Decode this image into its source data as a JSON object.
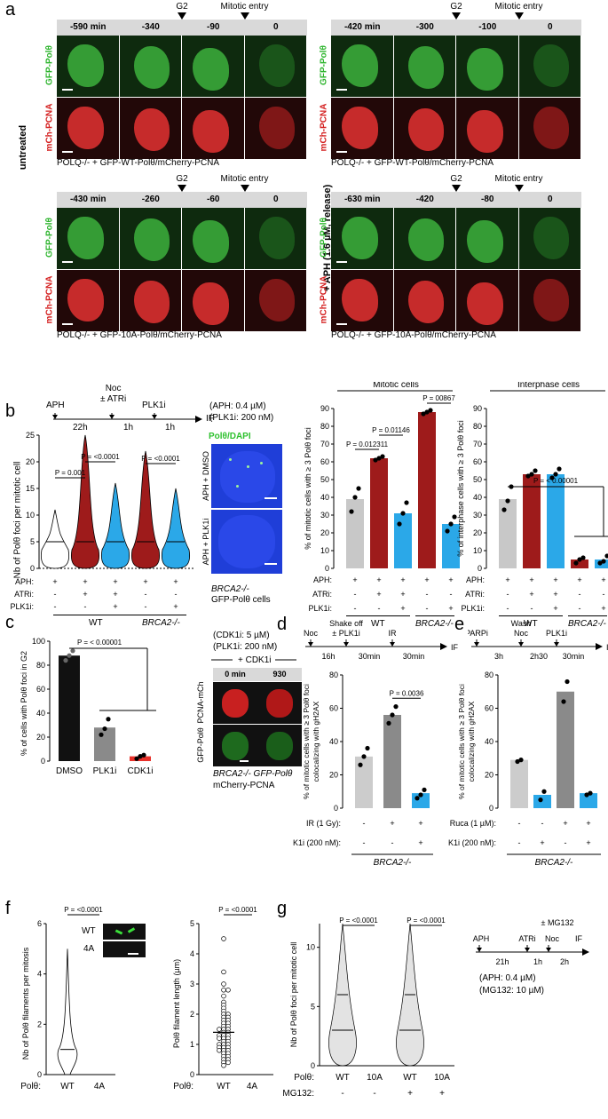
{
  "panel_a": {
    "label": "a",
    "side_untreated": "untreated",
    "side_aph": "+ APH (1.6  µM, release)",
    "g2": "G2",
    "mitotic_entry": "Mitotic entry",
    "row_green": "GFP-Polθ",
    "row_red": "mCh-PCNA",
    "sub1": {
      "times": [
        "-590 min",
        "-340",
        "-90",
        "0"
      ],
      "caption": "POLQ-/- + GFP-WT-Polθ/mCherry-PCNA"
    },
    "sub2": {
      "times": [
        "-420 min",
        "-300",
        "-100",
        "0"
      ],
      "caption": "POLQ-/- + GFP-WT-Polθ/mCherry-PCNA"
    },
    "sub3": {
      "times": [
        "-430 min",
        "-260",
        "-60",
        "0"
      ],
      "caption": "POLQ-/- + GFP-10A-Polθ/mCherry-PCNA"
    },
    "sub4": {
      "times": [
        "-630 min",
        "-420",
        "-80",
        "0"
      ],
      "caption": "POLQ-/- + GFP-10A-Polθ/mCherry-PCNA"
    }
  },
  "panel_b": {
    "label": "b",
    "timeline": {
      "steps": [
        "APH",
        "Noc\n± ATRi",
        "PLK1i",
        "IF"
      ],
      "durations": [
        "22h",
        "1h",
        "1h"
      ]
    },
    "conc": [
      "(APH: 0.4 µM)",
      "(PLK1i: 200 nM)"
    ],
    "img_title": "Polθ/DAPI",
    "img_rows": [
      "APH + DMSO",
      "APH + PLK1i"
    ],
    "img_caption": [
      "BRCA2-/-",
      "GFP-Polθ cells"
    ],
    "violin": {
      "ylabel": "Nb of Polθ foci per mitotic cell",
      "yticks": [
        "25",
        "20",
        "15",
        "10",
        "5",
        "0"
      ],
      "pvals": [
        "P = 0.001",
        "P = <0.0001",
        "P = <0.0001"
      ]
    },
    "mitotic": {
      "title": "Mitotic cells",
      "ylabel": "% of mitotic cells with ≥ 3 Polθ foci",
      "yticks": [
        "90",
        "80",
        "70",
        "60",
        "50",
        "40",
        "30",
        "20",
        "10",
        "0"
      ],
      "pvals": [
        "P = 0.012311",
        "P = 0.01146",
        "P = 00867"
      ]
    },
    "interphase": {
      "title": "Interphase cells",
      "ylabel": "% of interphase cells with ≥ 3 Polθ foci",
      "yticks": [
        "90",
        "80",
        "70",
        "60",
        "50",
        "40",
        "30",
        "20",
        "10",
        "0"
      ],
      "pvals": [
        "P = < 0.00001"
      ]
    },
    "cond_labels": [
      "APH:",
      "ATRi:",
      "PLK1i:"
    ],
    "cond_aph": [
      "+",
      "+",
      "+",
      "+",
      "+"
    ],
    "cond_atri": [
      "-",
      "+",
      "+",
      "-",
      "-"
    ],
    "cond_plk": [
      "-",
      "-",
      "+",
      "-",
      "+"
    ],
    "group_wt": "WT",
    "group_brca": "BRCA2-/-"
  },
  "chart_data": [
    {
      "type": "bar",
      "title": "Mitotic cells",
      "ylabel": "% of mitotic cells with ≥ 3 Polθ foci",
      "ylim": [
        0,
        90
      ],
      "categories": [
        "WT APH",
        "WT APH+ATRi",
        "WT APH+ATRi+PLK1i",
        "BRCA2-/- APH",
        "BRCA2-/- APH+PLK1i"
      ],
      "values": [
        39,
        62,
        31,
        88,
        25
      ],
      "colors": [
        "#c8c8c8",
        "#9e1b1b",
        "#2ba8e8",
        "#9e1b1b",
        "#2ba8e8"
      ],
      "points": [
        [
          32,
          40,
          45
        ],
        [
          61,
          62,
          63
        ],
        [
          25,
          31,
          37
        ],
        [
          87,
          88,
          89
        ],
        [
          21,
          25,
          29
        ]
      ]
    },
    {
      "type": "bar",
      "title": "Interphase cells",
      "ylabel": "% of interphase cells with ≥ 3 Polθ foci",
      "ylim": [
        0,
        90
      ],
      "categories": [
        "WT APH",
        "WT APH+ATRi",
        "WT APH+ATRi+PLK1i",
        "BRCA2-/- APH",
        "BRCA2-/- APH+PLK1i"
      ],
      "values": [
        39,
        53,
        53,
        5,
        5
      ],
      "colors": [
        "#c8c8c8",
        "#9e1b1b",
        "#2ba8e8",
        "#9e1b1b",
        "#2ba8e8"
      ],
      "points": [
        [
          33,
          38,
          46
        ],
        [
          52,
          53,
          55
        ],
        [
          51,
          53,
          56
        ],
        [
          3,
          5,
          6
        ],
        [
          3,
          4,
          7
        ]
      ]
    },
    {
      "type": "bar",
      "ylabel": "% of cells with Polθ foci in G2",
      "ylim": [
        0,
        100
      ],
      "categories": [
        "DMSO",
        "PLK1i",
        "CDK1i"
      ],
      "values": [
        88,
        28,
        4
      ],
      "colors": [
        "#111111",
        "#8a8a8a",
        "#e8312a"
      ],
      "points": [
        [
          84,
          88,
          92
        ],
        [
          22,
          27,
          35
        ],
        [
          2,
          4,
          5
        ]
      ]
    },
    {
      "type": "bar",
      "ylabel": "% of mitotic cells with ≥ 3 Polθ foci colocalizing with gH2AX",
      "ylim": [
        0,
        80
      ],
      "categories": [
        "-IR -PLK1i",
        "+IR -PLK1i",
        "+IR +PLK1i"
      ],
      "values": [
        31,
        56,
        9
      ],
      "colors": [
        "#cccccc",
        "#8a8a8a",
        "#2ba8e8"
      ],
      "points": [
        [
          26,
          31,
          36
        ],
        [
          51,
          56,
          61
        ],
        [
          6,
          8,
          11
        ]
      ]
    },
    {
      "type": "bar",
      "ylabel": "% of mitotic cells with ≥ 3 Polθ foci colocalizing with gH2AX",
      "ylim": [
        0,
        80
      ],
      "categories": [
        "-Ruca -PLK1i",
        "-Ruca +PLK1i",
        "+Ruca -PLK1i",
        "+Ruca +PLK1i"
      ],
      "values": [
        29,
        8,
        70,
        9
      ],
      "colors": [
        "#cccccc",
        "#2ba8e8",
        "#8a8a8a",
        "#2ba8e8"
      ],
      "points": [
        [
          28,
          29
        ],
        [
          5,
          10
        ],
        [
          64,
          76
        ],
        [
          8,
          9
        ]
      ]
    },
    {
      "type": "scatter",
      "ylabel": "Polθ filament length (µm)",
      "ylim": [
        0,
        5
      ],
      "categories": [
        "WT",
        "4A"
      ],
      "mean": 1.4
    }
  ],
  "panel_c": {
    "label": "c",
    "ylabel": "% of cells with Polθ foci in G2",
    "yticks": [
      "100",
      "80",
      "60",
      "40",
      "20",
      "0"
    ],
    "pval": "P = < 0.00001",
    "cats": [
      "DMSO",
      "PLK1i",
      "CDK1i"
    ],
    "conc": "(CDK1i: 5 µM)",
    "conc2": "(PLK1i: 200 nM)",
    "plus": "+ CDK1i",
    "times": [
      "0 min",
      "930"
    ],
    "rowA": "PCNA-mCh",
    "rowB": "GFP-Polθ",
    "caption": [
      "BRCA2-/- GFP-Polθ",
      "mCherry-PCNA"
    ]
  },
  "panel_d": {
    "label": "d",
    "timeline": {
      "steps": [
        "Noc",
        "Shake off\n± PLK1i",
        "IR",
        "IF"
      ],
      "durations": [
        "16h",
        "30min",
        "30min"
      ]
    },
    "ylabel": "% of mitotic cells with ≥ 3 Polθ foci colocalizing with gH2AX",
    "yticks": [
      "80",
      "60",
      "40",
      "20",
      "0"
    ],
    "pval": "P = 0.0036",
    "rows": [
      {
        "label": "IR (1 Gy):",
        "vals": [
          "-",
          "+",
          "+"
        ]
      },
      {
        "label": "PLK1i (200 nM):",
        "vals": [
          "-",
          "-",
          "+"
        ]
      }
    ],
    "group": "BRCA2-/-"
  },
  "panel_e": {
    "label": "e",
    "timeline": {
      "steps": [
        "PARPi",
        "Wash\nNoc",
        "PLK1i",
        "IF"
      ],
      "durations": [
        "3h",
        "2h30",
        "30min"
      ]
    },
    "ylabel": "% of mitotic cells with ≥ 3 Polθ foci colocalizing with gH2AX",
    "yticks": [
      "80",
      "60",
      "40",
      "20",
      "0"
    ],
    "rows": [
      {
        "label": "Ruca (1 µM):",
        "vals": [
          "-",
          "-",
          "+",
          "+"
        ]
      },
      {
        "label": "PLK1i (200 nM):",
        "vals": [
          "-",
          "+",
          "-",
          "+"
        ]
      }
    ],
    "group": "BRCA2-/-"
  },
  "panel_f": {
    "label": "f",
    "ylabel1": "Nb of Polθ filaments per mitosis",
    "yticks1": [
      "6",
      "4",
      "2",
      "0"
    ],
    "pval1": "P = <0.0001",
    "ylabel2": "Polθ filament length (µm)",
    "yticks2": [
      "5",
      "4",
      "3",
      "2",
      "1",
      "0"
    ],
    "pval2": "P = <0.0001",
    "xlabel": "Polθ:",
    "cats": [
      "WT",
      "4A"
    ],
    "img": [
      "WT",
      "4A"
    ]
  },
  "panel_g": {
    "label": "g",
    "ylabel": "Nb of Polθ foci per mitotic cell",
    "yticks": [
      "10",
      "5",
      "0"
    ],
    "pvals": [
      "P = <0.0001",
      "P = <0.0001"
    ],
    "row1": {
      "label": "Polθ:",
      "vals": [
        "WT",
        "10A",
        "WT",
        "10A"
      ]
    },
    "row2": {
      "label": "MG132:",
      "vals": [
        "-",
        "-",
        "+",
        "+"
      ]
    },
    "timeline": {
      "top": "± MG132",
      "steps": [
        "APH",
        "ATRi",
        "Noc",
        "IF"
      ],
      "durations": [
        "21h",
        "1h",
        "2h"
      ]
    },
    "conc": [
      "(APH: 0.4 µM)",
      "(MG132: 10 µM)"
    ]
  }
}
